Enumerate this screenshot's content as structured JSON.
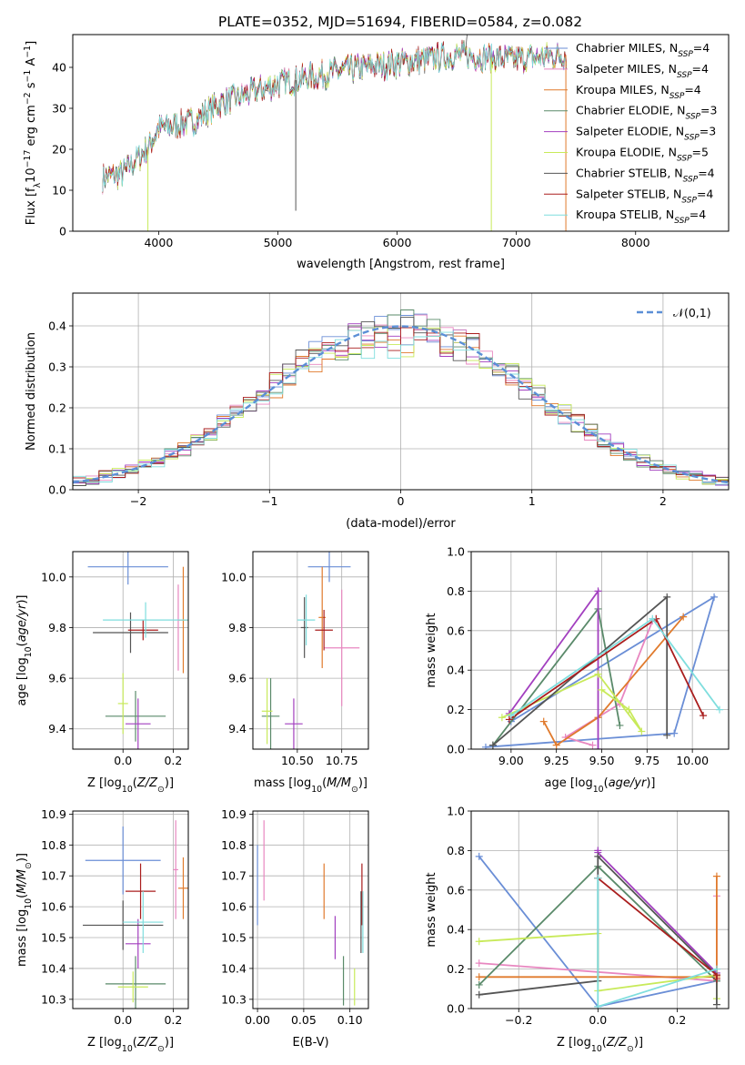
{
  "title": "PLATE=0352, MJD=51694, FIBERID=0584, z=0.082",
  "colors": [
    "#6a8ed6",
    "#e887c0",
    "#e07a2c",
    "#5a8a6a",
    "#a23fbf",
    "#c8ea5a",
    "#555555",
    "#aa1e1e",
    "#7fdede"
  ],
  "chart_data": [
    {
      "id": "spectrum",
      "type": "line",
      "xlabel": "wavelength [Angstrom, rest frame]",
      "ylabel": "Flux [f_λ10^-17 erg cm^-2 s^-1 A^-1]",
      "xlim": [
        3280,
        8780
      ],
      "ylim": [
        0,
        48
      ],
      "xticks": [
        4000,
        5000,
        6000,
        7000,
        8000
      ],
      "yticks": [
        0,
        10,
        20,
        30,
        40
      ],
      "legend_position": "top-right",
      "series": [
        {
          "name": "Chabrier MILES, N_SSP=4"
        },
        {
          "name": "Salpeter MILES, N_SSP=4"
        },
        {
          "name": "Kroupa MILES, N_SSP=4"
        },
        {
          "name": "Chabrier ELODIE, N_SSP=3"
        },
        {
          "name": "Salpeter ELODIE, N_SSP=3"
        },
        {
          "name": "Kroupa ELODIE, N_SSP=5"
        },
        {
          "name": "Chabrier STELIB, N_SSP=4"
        },
        {
          "name": "Salpeter STELIB, N_SSP=4"
        },
        {
          "name": "Kroupa STELIB, N_SSP=4"
        }
      ],
      "continuum_knots": {
        "x": [
          3530,
          3700,
          3900,
          4000,
          4300,
          4500,
          5000,
          5500,
          6000,
          6500,
          7000,
          7400,
          8000,
          8500
        ],
        "y": [
          13,
          14,
          20,
          25,
          27,
          31,
          36,
          39,
          41,
          43,
          42,
          43,
          44,
          44
        ]
      },
      "line_range": [
        3530,
        7420
      ],
      "dropouts": [
        {
          "x": 3910,
          "y": 0
        },
        {
          "x": 5150,
          "y": 5
        },
        {
          "x": 6790,
          "y": 0
        },
        {
          "x": 7415,
          "y": 0
        }
      ]
    },
    {
      "id": "residuals",
      "type": "histogram",
      "xlabel": "(data-model)/error",
      "ylabel": "Normed distribution",
      "xlim": [
        -2.5,
        2.5
      ],
      "ylim": [
        0,
        0.48
      ],
      "xticks": [
        -2,
        -1,
        0,
        1,
        2
      ],
      "yticks": [
        0.0,
        0.1,
        0.2,
        0.3,
        0.4
      ],
      "grid": true,
      "legend": "𝒩(0,1)",
      "legend_position": "top-right",
      "bin_width": 0.1,
      "bin_start": -2.5
    },
    {
      "id": "age_vs_Z",
      "type": "errorbar",
      "xlabel": "Z [log10(Z/Z⊙)]",
      "ylabel": "age [log10(age/yr)]",
      "xlim": [
        -0.2,
        0.26
      ],
      "ylim": [
        9.32,
        10.1
      ],
      "xticks": [
        0.0,
        0.2
      ],
      "yticks": [
        9.4,
        9.6,
        9.8,
        10.0
      ],
      "grid": true,
      "points": [
        {
          "x": 0.02,
          "xerr": 0.16,
          "y": 10.04,
          "yerr": 0.07
        },
        {
          "x": 0.22,
          "xerr": 0.0,
          "y": 9.8,
          "yerr": 0.17
        },
        {
          "x": 0.24,
          "xerr": 0.02,
          "y": 9.83,
          "yerr": 0.21
        },
        {
          "x": 0.05,
          "xerr": 0.12,
          "y": 9.45,
          "yerr": 0.1
        },
        {
          "x": 0.06,
          "xerr": 0.05,
          "y": 9.42,
          "yerr": 0.1
        },
        {
          "x": 0.0,
          "xerr": 0.02,
          "y": 9.5,
          "yerr": 0.12
        },
        {
          "x": 0.03,
          "xerr": 0.15,
          "y": 9.78,
          "yerr": 0.08
        },
        {
          "x": 0.08,
          "xerr": 0.06,
          "y": 9.79,
          "yerr": 0.04
        },
        {
          "x": 0.09,
          "xerr": 0.17,
          "y": 9.83,
          "yerr": 0.07
        }
      ]
    },
    {
      "id": "age_vs_mass",
      "type": "errorbar",
      "xlabel": "mass [log10(M/M⊙)]",
      "ylabel": "",
      "xlim": [
        10.25,
        10.9
      ],
      "ylim": [
        9.32,
        10.1
      ],
      "xticks": [
        10.5,
        10.75
      ],
      "yticks": [
        9.4,
        9.6,
        9.8,
        10.0
      ],
      "grid": true,
      "points": [
        {
          "x": 10.68,
          "xerr": 0.12,
          "y": 10.04,
          "yerr": 0.06
        },
        {
          "x": 10.75,
          "xerr": 0.1,
          "y": 9.72,
          "yerr": 0.23
        },
        {
          "x": 10.64,
          "xerr": 0.02,
          "y": 9.84,
          "yerr": 0.2
        },
        {
          "x": 10.35,
          "xerr": 0.05,
          "y": 9.45,
          "yerr": 0.15
        },
        {
          "x": 10.48,
          "xerr": 0.05,
          "y": 9.42,
          "yerr": 0.1
        },
        {
          "x": 10.33,
          "xerr": 0.03,
          "y": 9.47,
          "yerr": 0.13
        },
        {
          "x": 10.54,
          "xerr": 0.02,
          "y": 9.8,
          "yerr": 0.12
        },
        {
          "x": 10.65,
          "xerr": 0.05,
          "y": 9.79,
          "yerr": 0.08
        },
        {
          "x": 10.55,
          "xerr": 0.05,
          "y": 9.83,
          "yerr": 0.1
        }
      ]
    },
    {
      "id": "weight_vs_age",
      "type": "line",
      "xlabel": "age [log10(age/yr)]",
      "ylabel": "mass weight",
      "xlim": [
        8.78,
        10.2
      ],
      "ylim": [
        0,
        1.0
      ],
      "xticks": [
        9.0,
        9.25,
        9.5,
        9.75,
        10.0
      ],
      "yticks": [
        0.0,
        0.2,
        0.4,
        0.6,
        0.8,
        1.0
      ],
      "grid": true,
      "series": [
        {
          "x": [
            8.86,
            9.9,
            10.12,
            9.0
          ],
          "y": [
            0.01,
            0.08,
            0.77,
            0.14
          ]
        },
        {
          "x": [
            9.45,
            9.3,
            9.6,
            9.78
          ],
          "y": [
            0.02,
            0.06,
            0.23,
            0.65
          ]
        },
        {
          "x": [
            9.18,
            9.25,
            9.48,
            9.95
          ],
          "y": [
            0.14,
            0.02,
            0.16,
            0.67
          ]
        },
        {
          "x": [
            8.9,
            9.48,
            9.6
          ],
          "y": [
            0.02,
            0.71,
            0.12
          ]
        },
        {
          "x": [
            9.48,
            9.48,
            8.99
          ],
          "y": [
            0.0,
            0.8,
            0.18
          ]
        },
        {
          "x": [
            8.95,
            9.48,
            9.72,
            9.65,
            9.5
          ],
          "y": [
            0.16,
            0.38,
            0.09,
            0.2,
            0.3
          ]
        },
        {
          "x": [
            8.9,
            9.86,
            9.86
          ],
          "y": [
            0.02,
            0.77,
            0.07
          ]
        },
        {
          "x": [
            8.99,
            9.8,
            10.06
          ],
          "y": [
            0.15,
            0.66,
            0.17
          ]
        },
        {
          "x": [
            9.0,
            9.78,
            10.15
          ],
          "y": [
            0.17,
            0.66,
            0.2
          ]
        }
      ]
    },
    {
      "id": "mass_vs_Z",
      "type": "errorbar",
      "xlabel": "Z [log10(Z/Z⊙)]",
      "ylabel": "mass [log10(M/M⊙)]",
      "xlim": [
        -0.2,
        0.26
      ],
      "ylim": [
        10.27,
        10.91
      ],
      "xticks": [
        0.0,
        0.2
      ],
      "yticks": [
        10.3,
        10.4,
        10.5,
        10.6,
        10.7,
        10.8,
        10.9
      ],
      "grid": true,
      "points": [
        {
          "x": 0.0,
          "xerr": 0.15,
          "y": 10.75,
          "yerr": 0.11
        },
        {
          "x": 0.21,
          "xerr": 0.01,
          "y": 10.72,
          "yerr": 0.16
        },
        {
          "x": 0.24,
          "xerr": 0.02,
          "y": 10.66,
          "yerr": 0.1
        },
        {
          "x": 0.05,
          "xerr": 0.12,
          "y": 10.35,
          "yerr": 0.09
        },
        {
          "x": 0.06,
          "xerr": 0.05,
          "y": 10.48,
          "yerr": 0.08
        },
        {
          "x": 0.04,
          "xerr": 0.06,
          "y": 10.34,
          "yerr": 0.05
        },
        {
          "x": 0.0,
          "xerr": 0.16,
          "y": 10.54,
          "yerr": 0.08
        },
        {
          "x": 0.07,
          "xerr": 0.06,
          "y": 10.65,
          "yerr": 0.09
        },
        {
          "x": 0.08,
          "xerr": 0.08,
          "y": 10.55,
          "yerr": 0.1
        }
      ]
    },
    {
      "id": "mass_vs_ebv",
      "type": "errorbar",
      "xlabel": "E(B-V)",
      "ylabel": "",
      "xlim": [
        -0.005,
        0.12
      ],
      "ylim": [
        10.27,
        10.91
      ],
      "xticks": [
        0.0,
        0.05,
        0.1
      ],
      "yticks": [
        10.3,
        10.4,
        10.5,
        10.6,
        10.7,
        10.8,
        10.9
      ],
      "grid": true,
      "points": [
        {
          "x": 0.0,
          "y": 10.67,
          "yerr": 0.13
        },
        {
          "x": 0.007,
          "y": 10.75,
          "yerr": 0.13
        },
        {
          "x": 0.072,
          "y": 10.65,
          "yerr": 0.09
        },
        {
          "x": 0.093,
          "y": 10.36,
          "yerr": 0.08
        },
        {
          "x": 0.084,
          "y": 10.5,
          "yerr": 0.07
        },
        {
          "x": 0.105,
          "y": 10.34,
          "yerr": 0.06
        },
        {
          "x": 0.112,
          "y": 10.55,
          "yerr": 0.1
        },
        {
          "x": 0.113,
          "y": 10.64,
          "yerr": 0.1
        },
        {
          "x": 0.114,
          "y": 10.55,
          "yerr": 0.1
        }
      ]
    },
    {
      "id": "weight_vs_Z",
      "type": "line",
      "xlabel": "Z [log10(Z/Z⊙)]",
      "ylabel": "mass weight",
      "xlim": [
        -0.32,
        0.33
      ],
      "ylim": [
        0,
        1.0
      ],
      "xticks": [
        -0.2,
        0.0,
        0.2
      ],
      "yticks": [
        0.0,
        0.2,
        0.4,
        0.6,
        0.8,
        1.0
      ],
      "grid": true,
      "series": [
        {
          "x": [
            -0.3,
            0.0,
            0.3
          ],
          "y": [
            0.77,
            0.01,
            0.14
          ]
        },
        {
          "x": [
            -0.3,
            0.3,
            0.3
          ],
          "y": [
            0.23,
            0.14,
            0.57
          ]
        },
        {
          "x": [
            -0.3,
            0.3,
            0.3
          ],
          "y": [
            0.16,
            0.16,
            0.67
          ]
        },
        {
          "x": [
            -0.3,
            0.0,
            0.3
          ],
          "y": [
            0.12,
            0.72,
            0.14
          ]
        },
        {
          "x": [
            0.0,
            0.0,
            0.3
          ],
          "y": [
            0.8,
            0.79,
            0.18
          ]
        },
        {
          "x": [
            -0.3,
            0.0,
            0.0,
            0.3,
            0.3
          ],
          "y": [
            0.34,
            0.38,
            0.09,
            0.17,
            0.05
          ]
        },
        {
          "x": [
            -0.3,
            0.0,
            0.0,
            0.3,
            0.3
          ],
          "y": [
            0.07,
            0.14,
            0.77,
            0.17,
            0.02
          ]
        },
        {
          "x": [
            0.0,
            0.0,
            0.3,
            0.3
          ],
          "y": [
            0.66,
            0.66,
            0.17,
            0.15
          ]
        },
        {
          "x": [
            0.0,
            0.0,
            0.3
          ],
          "y": [
            0.66,
            0.01,
            0.2
          ]
        }
      ]
    }
  ]
}
